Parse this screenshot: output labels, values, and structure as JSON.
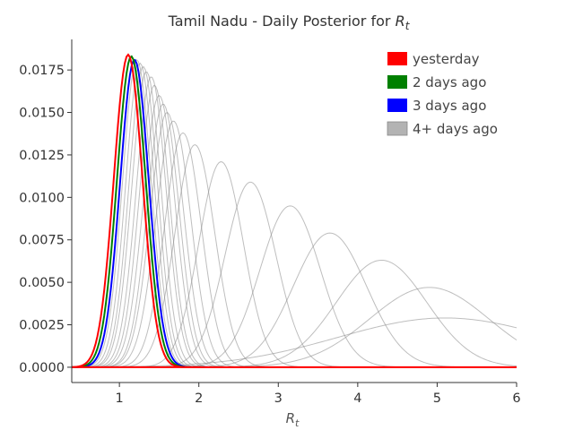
{
  "chart_data": {
    "type": "line",
    "title": "Tamil Nadu - Daily Posterior for R",
    "title_subscript": "t",
    "xlabel": "R",
    "xlabel_subscript": "t",
    "ylabel": "",
    "xlim": [
      0.4,
      6.0
    ],
    "ylim": [
      -0.0009,
      0.0193
    ],
    "x_ticks": [
      1,
      2,
      3,
      4,
      5,
      6
    ],
    "x_tick_labels": [
      "1",
      "2",
      "3",
      "4",
      "5",
      "6"
    ],
    "y_ticks": [
      0,
      0.0025,
      0.005,
      0.0075,
      0.01,
      0.0125,
      0.015,
      0.0175
    ],
    "y_tick_labels": [
      "0.0000",
      "0.0025",
      "0.0050",
      "0.0075",
      "0.0100",
      "0.0125",
      "0.0150",
      "0.0175"
    ],
    "grid": false,
    "legend_position": "top-right",
    "legend": [
      {
        "label": "yesterday",
        "color": "#ff0000"
      },
      {
        "label": "2 days ago",
        "color": "#008000"
      },
      {
        "label": "3 days ago",
        "color": "#0000ff"
      },
      {
        "label": "4+ days ago",
        "color": "#b3b3b3"
      }
    ],
    "curve_model": "gaussian",
    "series": [
      {
        "kind": "old",
        "color": "#888888",
        "peak_x": 5.1,
        "peak_y": 0.0029,
        "width": 1.35
      },
      {
        "kind": "old",
        "color": "#888888",
        "peak_x": 4.9,
        "peak_y": 0.0047,
        "width": 0.75
      },
      {
        "kind": "old",
        "color": "#888888",
        "peak_x": 4.3,
        "peak_y": 0.0063,
        "width": 0.57
      },
      {
        "kind": "old",
        "color": "#888888",
        "peak_x": 3.65,
        "peak_y": 0.0079,
        "width": 0.46
      },
      {
        "kind": "old",
        "color": "#888888",
        "peak_x": 3.15,
        "peak_y": 0.0095,
        "width": 0.38
      },
      {
        "kind": "old",
        "color": "#888888",
        "peak_x": 2.65,
        "peak_y": 0.0109,
        "width": 0.32
      },
      {
        "kind": "old",
        "color": "#888888",
        "peak_x": 2.28,
        "peak_y": 0.0121,
        "width": 0.28
      },
      {
        "kind": "old",
        "color": "#888888",
        "peak_x": 1.95,
        "peak_y": 0.0131,
        "width": 0.25
      },
      {
        "kind": "old",
        "color": "#888888",
        "peak_x": 1.8,
        "peak_y": 0.0138,
        "width": 0.23
      },
      {
        "kind": "old",
        "color": "#888888",
        "peak_x": 1.68,
        "peak_y": 0.0145,
        "width": 0.22
      },
      {
        "kind": "old",
        "color": "#888888",
        "peak_x": 1.6,
        "peak_y": 0.015,
        "width": 0.21
      },
      {
        "kind": "old",
        "color": "#888888",
        "peak_x": 1.55,
        "peak_y": 0.0155,
        "width": 0.2
      },
      {
        "kind": "old",
        "color": "#888888",
        "peak_x": 1.5,
        "peak_y": 0.016,
        "width": 0.2
      },
      {
        "kind": "old",
        "color": "#888888",
        "peak_x": 1.44,
        "peak_y": 0.0166,
        "width": 0.19
      },
      {
        "kind": "old",
        "color": "#888888",
        "peak_x": 1.4,
        "peak_y": 0.0171,
        "width": 0.19
      },
      {
        "kind": "old",
        "color": "#888888",
        "peak_x": 1.34,
        "peak_y": 0.0174,
        "width": 0.185
      },
      {
        "kind": "old",
        "color": "#888888",
        "peak_x": 1.3,
        "peak_y": 0.0177,
        "width": 0.18
      },
      {
        "kind": "old",
        "color": "#888888",
        "peak_x": 1.26,
        "peak_y": 0.0179,
        "width": 0.18
      },
      {
        "kind": "old",
        "color": "#888888",
        "peak_x": 1.22,
        "peak_y": 0.0181,
        "width": 0.18
      },
      {
        "kind": "3 days ago",
        "color": "#0000ff",
        "peak_x": 1.19,
        "peak_y": 0.0181,
        "width": 0.18
      },
      {
        "kind": "2 days ago",
        "color": "#008000",
        "peak_x": 1.15,
        "peak_y": 0.0183,
        "width": 0.18
      },
      {
        "kind": "yesterday",
        "color": "#ff0000",
        "peak_x": 1.11,
        "peak_y": 0.0184,
        "width": 0.18
      }
    ]
  }
}
